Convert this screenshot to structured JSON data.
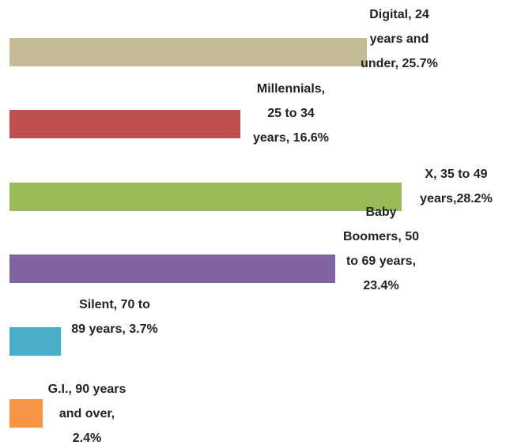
{
  "chart_data": {
    "type": "bar",
    "orientation": "horizontal",
    "values": [
      25.7,
      16.6,
      28.2,
      23.4,
      3.7,
      2.4
    ],
    "value_labels": [
      "Digital, 24 years and under, 25.7%",
      "Millennials, 25 to 34 years, 16.6%",
      "X, 35 to 49 years,28.2%",
      "Baby Boomers, 50 to 69 years, 23.4%",
      "Silent, 70 to 89 years, 3.7%",
      "G.I., 90 years and over, 2.4%"
    ],
    "colors": [
      "#c4bd97",
      "#c0504d",
      "#9bbb59",
      "#8064a2",
      "#4bacc6",
      "#f79646"
    ]
  }
}
